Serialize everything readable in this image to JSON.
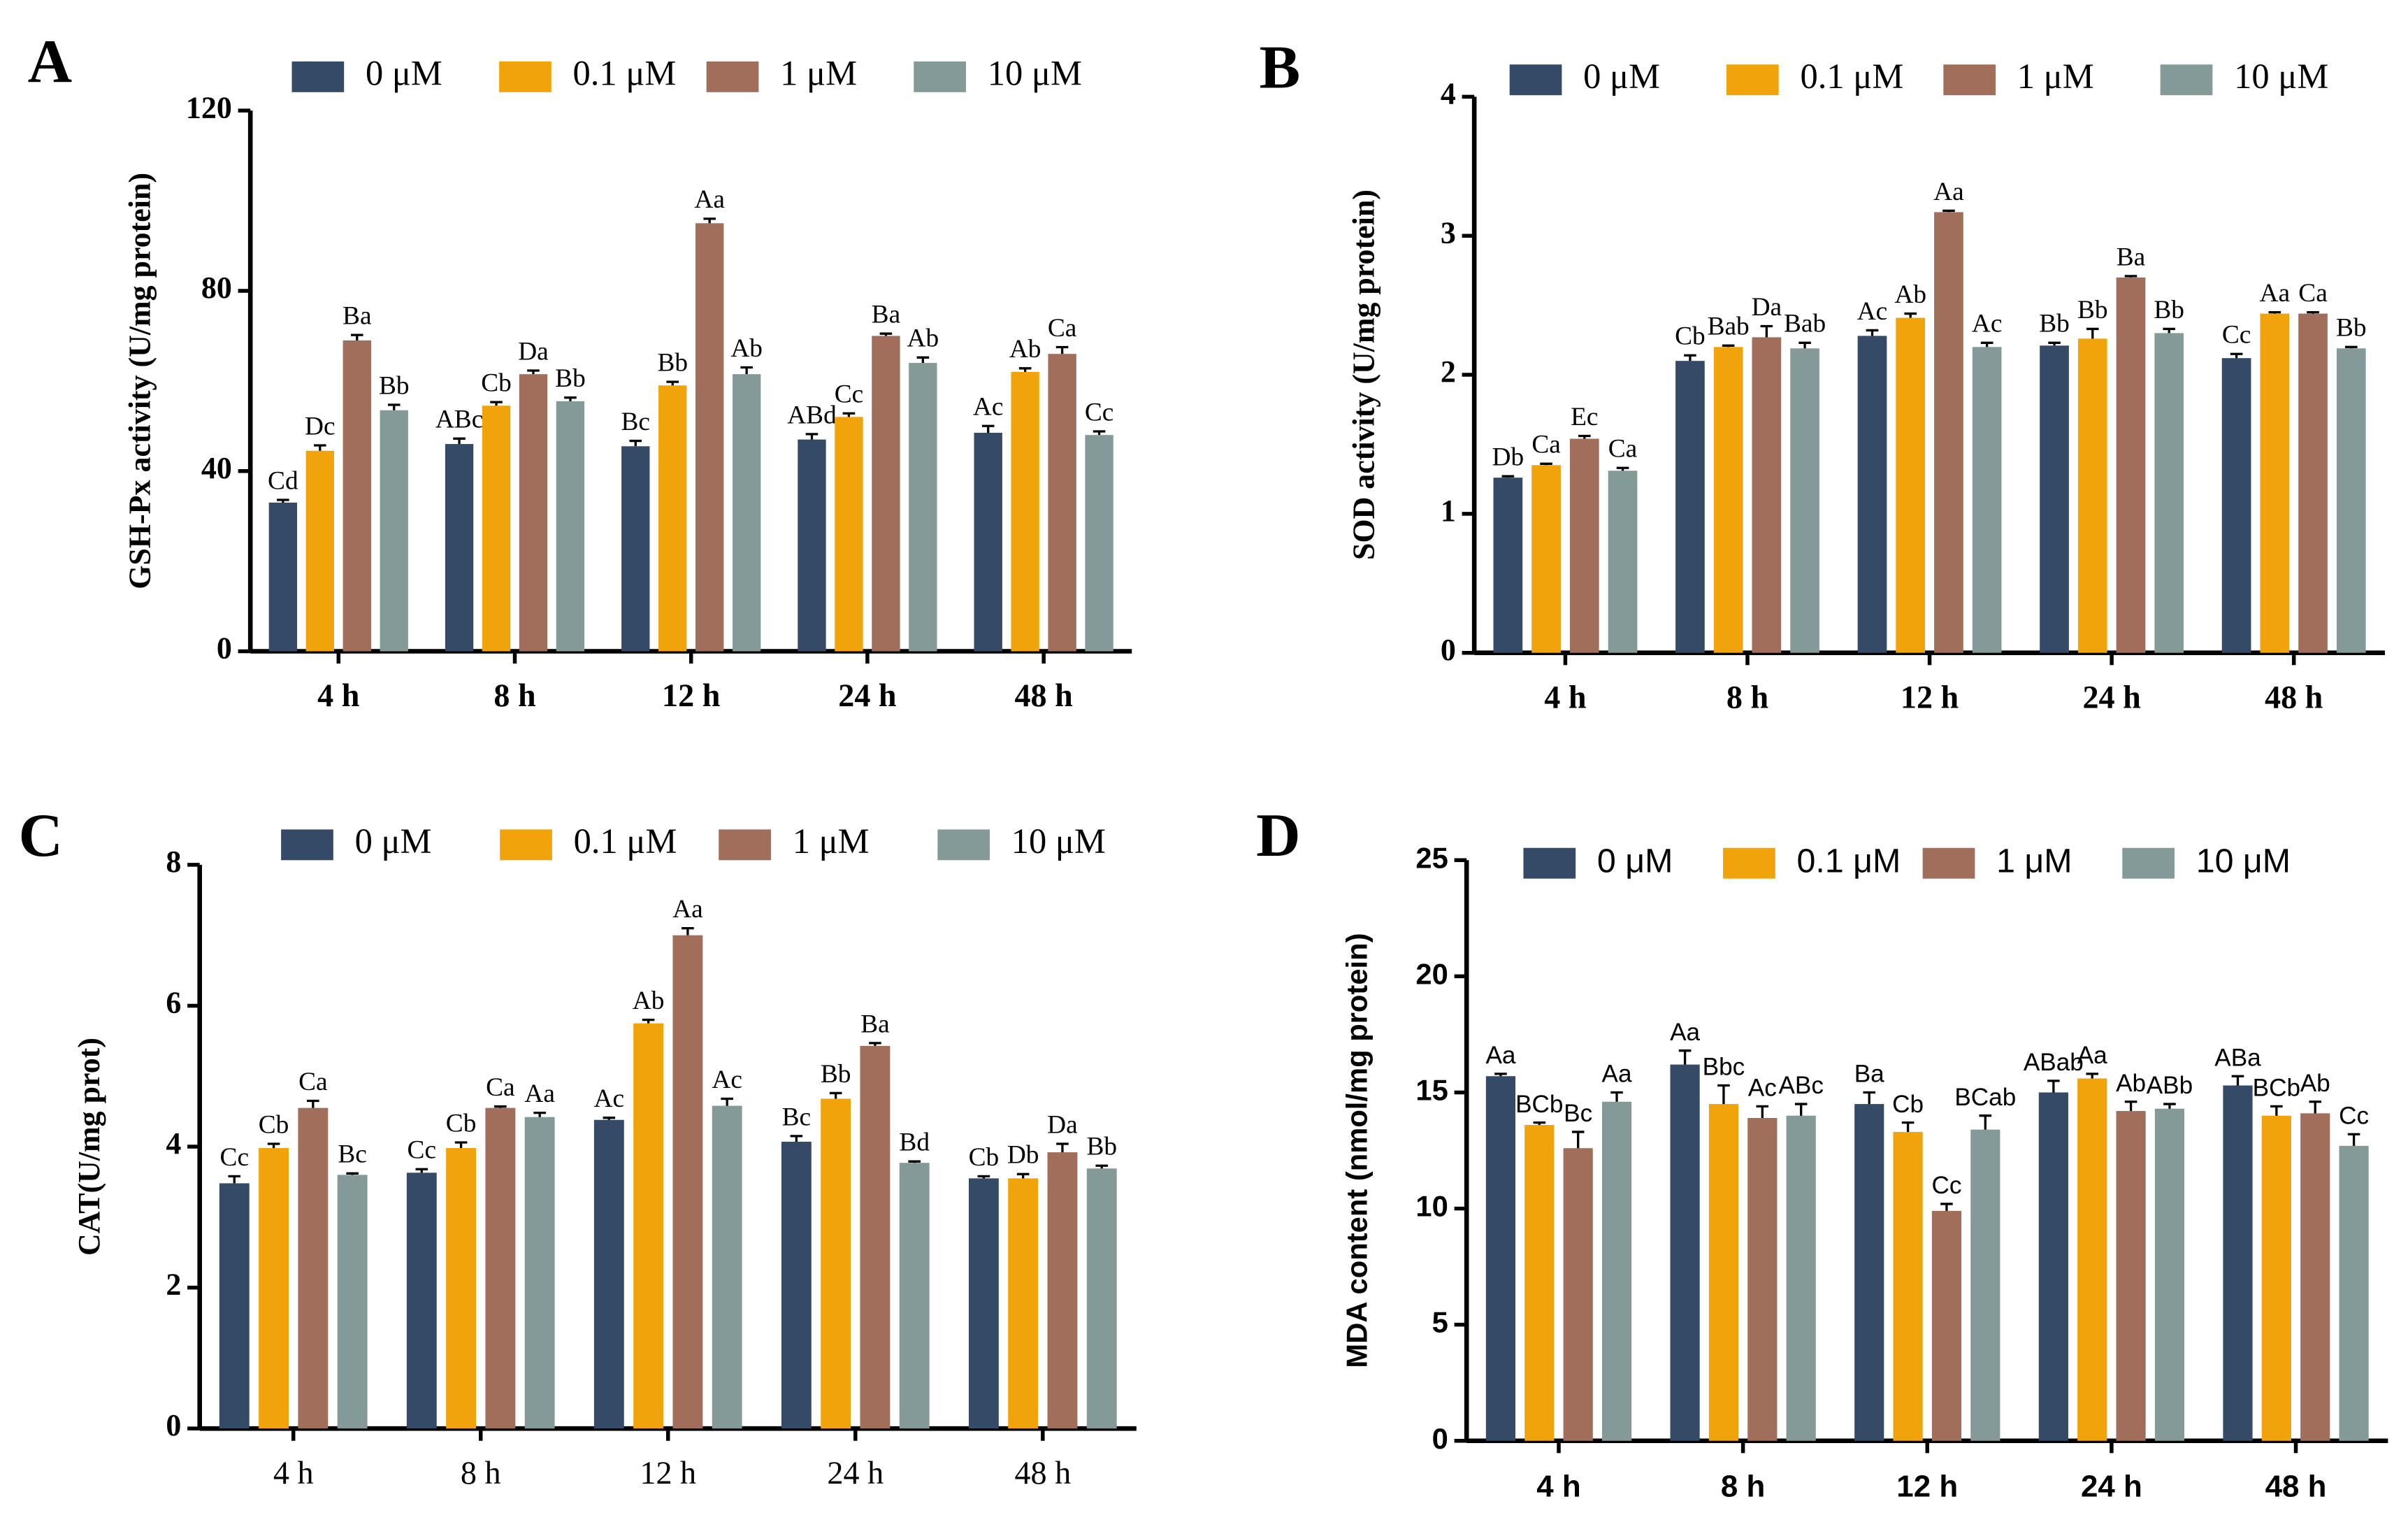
{
  "chart_data": [
    {
      "type": "bar",
      "panel": "A",
      "ylabel": "GSH-Px activity (U/mg protein)",
      "categories": [
        "4 h",
        "8 h",
        "12 h",
        "24 h",
        "48 h"
      ],
      "ylim": [
        0,
        120
      ],
      "yticks": [
        0,
        40,
        80,
        120
      ],
      "series": [
        {
          "name": "0 μM",
          "color": "#344a66",
          "values": [
            33,
            46,
            45.5,
            47,
            48.5
          ],
          "errors": [
            0.6,
            1.2,
            1.2,
            1.2,
            1.5
          ],
          "significance": [
            "Cd",
            "ABc",
            "Bc",
            "ABd",
            "Ac"
          ]
        },
        {
          "name": "0.1 μM",
          "color": "#f0a30a",
          "values": [
            44.5,
            54.5,
            59,
            52,
            62
          ],
          "errors": [
            1.2,
            0.8,
            0.8,
            0.8,
            0.8
          ],
          "significance": [
            "Dc",
            "Cb",
            "Bb",
            "Cc",
            "Ab"
          ]
        },
        {
          "name": "1 μM",
          "color": "#a06e5a",
          "values": [
            69,
            61.5,
            95,
            70,
            66
          ],
          "errors": [
            1.2,
            0.8,
            1,
            0.5,
            1.5
          ],
          "significance": [
            "Ba",
            "Da",
            "Aa",
            "Ba",
            "Ca"
          ]
        },
        {
          "name": "10 μM",
          "color": "#849a98",
          "values": [
            53.5,
            55.5,
            61.5,
            64,
            48
          ],
          "errors": [
            1.2,
            0.8,
            1.5,
            1.2,
            0.8
          ],
          "significance": [
            "Bb",
            "Bb",
            "Ab",
            "Ab",
            "Cc"
          ]
        }
      ]
    },
    {
      "type": "bar",
      "panel": "B",
      "ylabel": "SOD activity (U/mg protein)",
      "categories": [
        "4 h",
        "8 h",
        "12 h",
        "24 h",
        "48 h"
      ],
      "ylim": [
        0,
        4
      ],
      "yticks": [
        0,
        1,
        2,
        3,
        4
      ],
      "series": [
        {
          "name": "0 μM",
          "color": "#344a66",
          "values": [
            1.26,
            2.1,
            2.28,
            2.21,
            2.12
          ],
          "errors": [
            0.01,
            0.04,
            0.04,
            0.02,
            0.03
          ],
          "significance": [
            "Db",
            "Cb",
            "Ac",
            "Bb",
            "Cc"
          ]
        },
        {
          "name": "0.1 μM",
          "color": "#f0a30a",
          "values": [
            1.35,
            2.2,
            2.41,
            2.26,
            2.44
          ],
          "errors": [
            0.01,
            0.01,
            0.03,
            0.07,
            0.01
          ],
          "significance": [
            "Ca",
            "Bab",
            "Ab",
            "Bb",
            "Aa"
          ]
        },
        {
          "name": "1 μM",
          "color": "#a06e5a",
          "values": [
            1.54,
            2.27,
            3.17,
            2.7,
            2.44
          ],
          "errors": [
            0.02,
            0.08,
            0.01,
            0.01,
            0.01
          ],
          "significance": [
            "Ec",
            "Da",
            "Aa",
            "Ba",
            "Ca"
          ]
        },
        {
          "name": "10 μM",
          "color": "#849a98",
          "values": [
            1.31,
            2.19,
            2.2,
            2.3,
            2.19
          ],
          "errors": [
            0.02,
            0.04,
            0.03,
            0.03,
            0.01
          ],
          "significance": [
            "Ca",
            "Bab",
            "Ac",
            "Bb",
            "Bb"
          ]
        }
      ]
    },
    {
      "type": "bar",
      "panel": "C",
      "ylabel": "CAT(U/mg prot)",
      "categories": [
        "4 h",
        "8 h",
        "12 h",
        "24 h",
        "48 h"
      ],
      "ylim": [
        0,
        8
      ],
      "yticks": [
        0,
        2,
        4,
        6,
        8
      ],
      "series": [
        {
          "name": "0 μM",
          "color": "#344a66",
          "values": [
            3.48,
            3.63,
            4.38,
            4.07,
            3.55
          ],
          "errors": [
            0.1,
            0.05,
            0.03,
            0.08,
            0.03
          ],
          "significance": [
            "Cc",
            "Cc",
            "Ac",
            "Bc",
            "Cb"
          ]
        },
        {
          "name": "0.1 μM",
          "color": "#f0a30a",
          "values": [
            3.98,
            3.98,
            5.75,
            4.68,
            3.55
          ],
          "errors": [
            0.06,
            0.08,
            0.05,
            0.08,
            0.06
          ],
          "significance": [
            "Cb",
            "Cb",
            "Ab",
            "Bb",
            "Db"
          ]
        },
        {
          "name": "1 μM",
          "color": "#a06e5a",
          "values": [
            4.55,
            4.55,
            7.0,
            5.43,
            3.92
          ],
          "errors": [
            0.1,
            0.02,
            0.1,
            0.04,
            0.12
          ],
          "significance": [
            "Ca",
            "Ca",
            "Aa",
            "Ba",
            "Da"
          ]
        },
        {
          "name": "10 μM",
          "color": "#849a98",
          "values": [
            3.6,
            4.42,
            4.58,
            3.77,
            3.69
          ],
          "errors": [
            0.02,
            0.06,
            0.1,
            0.02,
            0.04
          ],
          "significance": [
            "Bc",
            "Aa",
            "Ac",
            "Bd",
            "Bb"
          ]
        }
      ]
    },
    {
      "type": "bar",
      "panel": "D",
      "ylabel": "MDA content (nmol/mg protein)",
      "categories": [
        "4 h",
        "8 h",
        "12 h",
        "24 h",
        "48 h"
      ],
      "ylim": [
        0,
        25
      ],
      "yticks": [
        0,
        5,
        10,
        15,
        20,
        25
      ],
      "series": [
        {
          "name": "0 μM",
          "color": "#344a66",
          "values": [
            15.7,
            16.2,
            14.5,
            15.0,
            15.3
          ],
          "errors": [
            0.1,
            0.6,
            0.5,
            0.5,
            0.4
          ],
          "significance": [
            "Aa",
            "Aa",
            "Ba",
            "ABab",
            "ABa"
          ]
        },
        {
          "name": "0.1 μM",
          "color": "#f0a30a",
          "values": [
            13.6,
            14.5,
            13.3,
            15.6,
            14.0
          ],
          "errors": [
            0.1,
            0.8,
            0.4,
            0.2,
            0.4
          ],
          "significance": [
            "BCb",
            "Bbc",
            "Cb",
            "Aa",
            "BCb"
          ]
        },
        {
          "name": "1 μM",
          "color": "#a06e5a",
          "values": [
            12.6,
            13.9,
            9.9,
            14.2,
            14.1
          ],
          "errors": [
            0.7,
            0.5,
            0.3,
            0.4,
            0.5
          ],
          "significance": [
            "Bc",
            "Ac",
            "Cc",
            "Ab",
            "Ab"
          ]
        },
        {
          "name": "10 μM",
          "color": "#849a98",
          "values": [
            14.6,
            14.0,
            13.4,
            14.3,
            12.7
          ],
          "errors": [
            0.4,
            0.5,
            0.6,
            0.2,
            0.5
          ],
          "significance": [
            "Aa",
            "ABc",
            "BCab",
            "ABb",
            "Cc"
          ]
        }
      ]
    }
  ]
}
